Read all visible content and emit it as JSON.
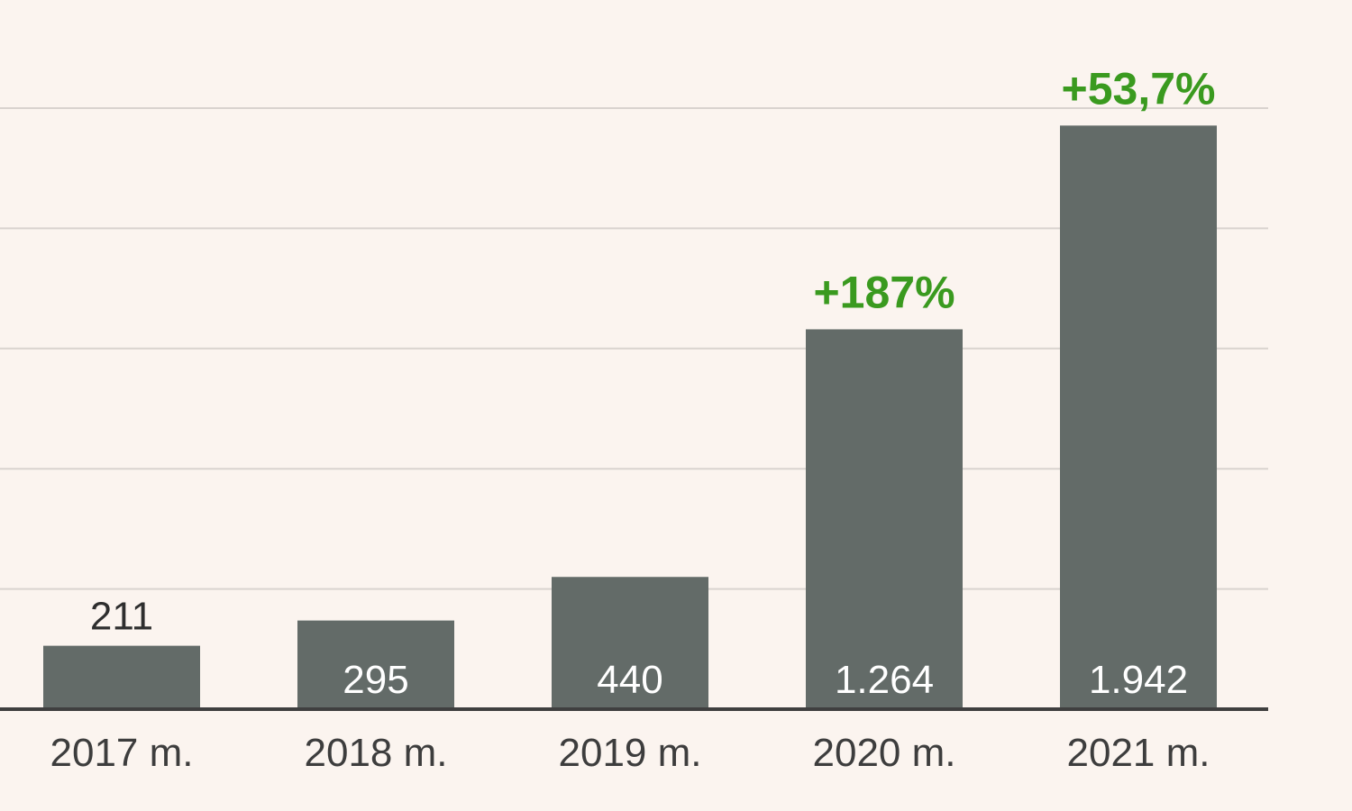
{
  "chart_data": {
    "type": "bar",
    "categories": [
      "2017 m.",
      "2018 m.",
      "2019 m.",
      "2020 m.",
      "2021 m."
    ],
    "values": [
      211,
      295,
      440,
      1264,
      1942
    ],
    "value_labels": [
      "211",
      "295",
      "440",
      "1.264",
      "1.942"
    ],
    "annotations": [
      {
        "category": "2020 m.",
        "text": "+187%"
      },
      {
        "category": "2021 m.",
        "text": "+53,7%"
      }
    ],
    "ylim": [
      0,
      2000
    ],
    "grid": true,
    "bar_color": "#636b68",
    "annotation_color": "#3a9a1f",
    "background_color": "#fbf4ef"
  }
}
